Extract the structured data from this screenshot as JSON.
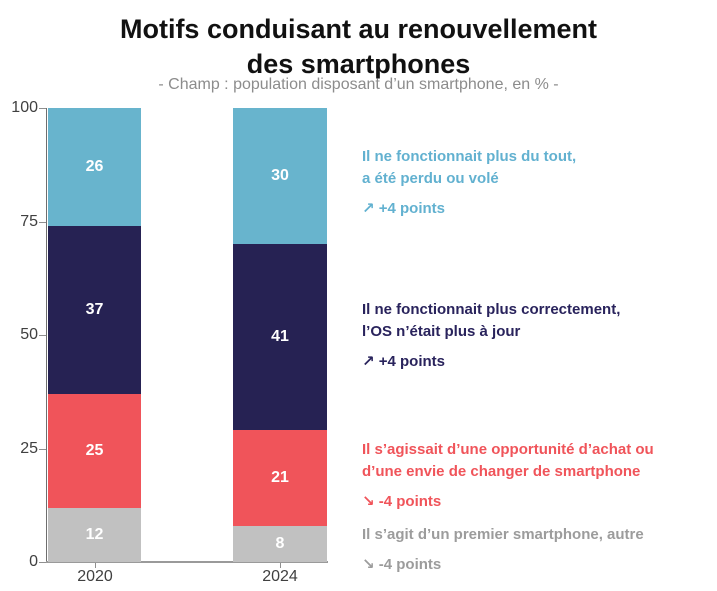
{
  "title": {
    "line1": "Motifs conduisant au renouvellement",
    "line2": "des smartphones"
  },
  "subtitle": "- Champ : population disposant d’un smartphone, en % -",
  "chart_data": {
    "type": "bar",
    "stacked": true,
    "categories": [
      "2020",
      "2024"
    ],
    "series": [
      {
        "name": "Il s’agit d’un premier smartphone, autre",
        "color": "#c1c1c1",
        "values": [
          12,
          8
        ]
      },
      {
        "name": "Il s’agissait d’une opportunité d’achat ou d’une envie de changer de smartphone",
        "color": "#f0545a",
        "values": [
          25,
          21
        ]
      },
      {
        "name": "Il ne fonctionnait plus correctement, l’OS n’était plus à jour",
        "color": "#262253",
        "values": [
          37,
          41
        ]
      },
      {
        "name": "Il ne fonctionnait plus du tout, a été perdu ou volé",
        "color": "#68b4cd",
        "values": [
          26,
          30
        ]
      }
    ],
    "ylim": [
      0,
      100
    ],
    "yticks": [
      0,
      25,
      50,
      75,
      100
    ],
    "grid": false,
    "legend_position": "right-annotations",
    "value_label_color": "#ffffff"
  },
  "annotations": [
    {
      "lines": [
        "Il ne fonctionnait plus du tout,",
        "a été perdu ou volé"
      ],
      "change": "↗ +4 points",
      "arrow_icon": "up-right-arrow",
      "color": "#62b1d0"
    },
    {
      "lines": [
        "Il ne fonctionnait plus correctement,",
        "l’OS n’était plus à jour"
      ],
      "change": "↗ +4 points",
      "arrow_icon": "up-right-arrow",
      "color": "#29235c"
    },
    {
      "lines": [
        "Il s’agissait d’une opportunité d’achat ou",
        "d’une envie de changer de smartphone"
      ],
      "change": "↘ -4 points",
      "arrow_icon": "down-right-arrow",
      "color": "#f0545a"
    },
    {
      "lines": [
        "Il s’agit d’un premier smartphone, autre"
      ],
      "change": "↘ -4 points",
      "arrow_icon": "down-right-arrow",
      "color": "#9c9c9c"
    }
  ]
}
